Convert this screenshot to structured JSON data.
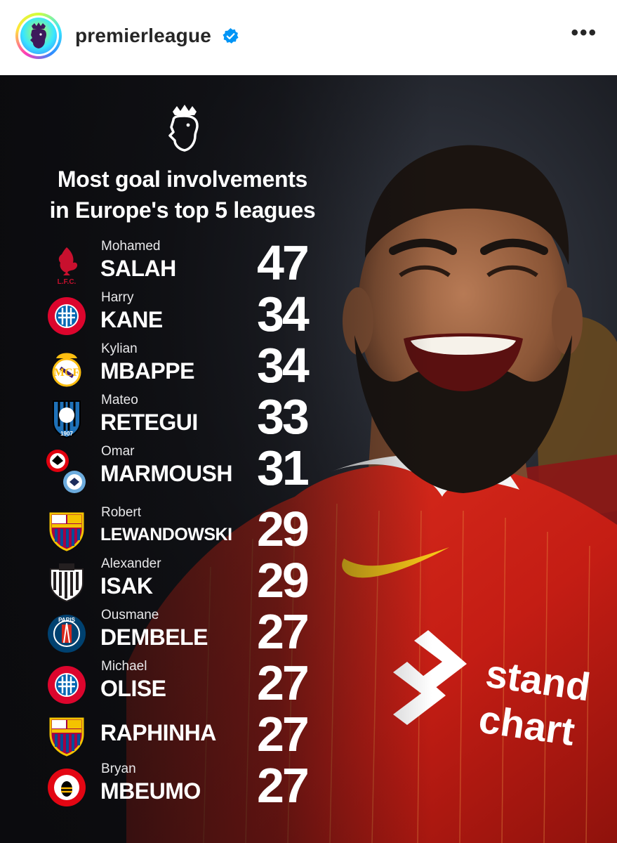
{
  "post": {
    "username": "premierleague",
    "more_label": "•••",
    "avatar_icon": "premier-league-lion-icon",
    "verified_icon": "verified-badge-icon"
  },
  "graphic": {
    "headline_line1": "Most goal involvements",
    "headline_line2": "in Europe's top 5 leagues",
    "logo_icon": "premier-league-lion-icon",
    "accent_color": "#d4121f",
    "players": [
      {
        "first": "Mohamed",
        "last": "SALAH",
        "total": "47",
        "crest": "liverpool-crest-icon",
        "color": "#c8102e"
      },
      {
        "first": "Harry",
        "last": "KANE",
        "total": "34",
        "crest": "bayern-munich-crest-icon",
        "color": "#dc052d"
      },
      {
        "first": "Kylian",
        "last": "MBAPPE",
        "total": "34",
        "crest": "real-madrid-crest-icon",
        "color": "#febe10"
      },
      {
        "first": "Mateo",
        "last": "RETEGUI",
        "total": "33",
        "crest": "atalanta-crest-icon",
        "color": "#1e71b8"
      },
      {
        "first": "Omar",
        "last": "MARMOUSH",
        "total": "31",
        "crest": "eintracht-frankfurt-and-man-city-crests-icon",
        "color": "#e1000f"
      },
      {
        "first": "Robert",
        "last": "LEWANDOWSKI",
        "total": "29",
        "crest": "barcelona-crest-icon",
        "color": "#a50044"
      },
      {
        "first": "Alexander",
        "last": "ISAK",
        "total": "29",
        "crest": "newcastle-crest-icon",
        "color": "#241f20"
      },
      {
        "first": "Ousmane",
        "last": "DEMBELE",
        "total": "27",
        "crest": "psg-crest-icon",
        "color": "#004170"
      },
      {
        "first": "Michael",
        "last": "OLISE",
        "total": "27",
        "crest": "bayern-munich-crest-icon",
        "color": "#dc052d"
      },
      {
        "first": "",
        "last": "RAPHINHA",
        "total": "27",
        "crest": "barcelona-crest-icon",
        "color": "#a50044"
      },
      {
        "first": "Bryan",
        "last": "MBEUMO",
        "total": "27",
        "crest": "brentford-crest-icon",
        "color": "#e30613"
      }
    ]
  }
}
